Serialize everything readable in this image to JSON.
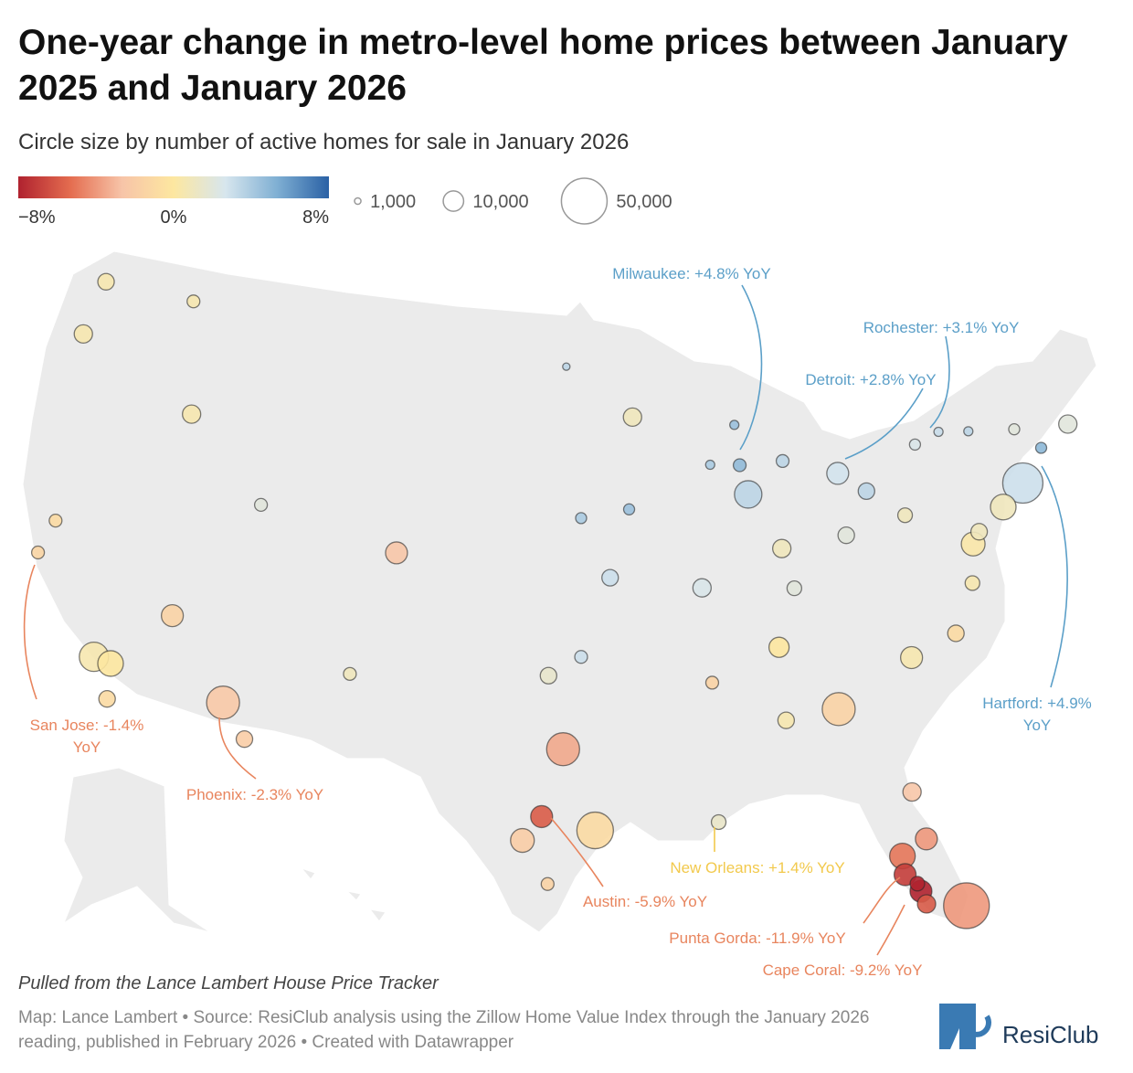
{
  "chart_data": {
    "type": "bubble-map",
    "title": "One-year change in metro-level home prices between January 2025 and January 2026",
    "subtitle": "Circle size by number of active homes for sale in January 2026",
    "color_ticks": [
      {
        "value": -8,
        "label": "−8%"
      },
      {
        "value": 0,
        "label": "0%"
      },
      {
        "value": 8,
        "label": "8%"
      }
    ],
    "colors": [
      "#b0222f",
      "#e46c4f",
      "#f7c4a8",
      "#fde7a0",
      "#d7e6ee",
      "#7fafd3",
      "#2a61a5"
    ],
    "size_ticks": [
      {
        "value": 1000,
        "label": "1,000"
      },
      {
        "value": 10000,
        "label": "10,000"
      },
      {
        "value": 50000,
        "label": "50,000"
      }
    ],
    "points": [
      {
        "label": "Milwaukee: +4.8% YoY",
        "lon": -87.9,
        "lat": 43.0,
        "change": 4.8,
        "inventory": 3900
      },
      {
        "label": "Rochester: +3.1% YoY",
        "lon": -77.6,
        "lat": 43.2,
        "change": 3.1,
        "inventory": 2000
      },
      {
        "label": "Detroit: +2.8% YoY",
        "lon": -83.0,
        "lat": 42.3,
        "change": 2.8,
        "inventory": 11500
      },
      {
        "label": "Hartford: +4.9% YoY",
        "lon": -72.7,
        "lat": 41.8,
        "change": 4.9,
        "inventory": 2900
      },
      {
        "label": "San Jose: -1.4% YoY",
        "lon": -121.9,
        "lat": 37.3,
        "change": -1.4,
        "inventory": 3900
      },
      {
        "label": "Phoenix: -2.3% YoY",
        "lon": -112.1,
        "lat": 33.4,
        "change": -2.3,
        "inventory": 26000
      },
      {
        "label": "Austin: -5.9% YoY",
        "lon": -97.7,
        "lat": 30.3,
        "change": -5.9,
        "inventory": 11500
      },
      {
        "label": "New Orleans: +1.4% YoY",
        "lon": -90.1,
        "lat": 29.95,
        "change": 1.4,
        "inventory": 5100
      },
      {
        "label": "Punta Gorda: -11.9% YoY",
        "lon": -82.05,
        "lat": 26.9,
        "change": -11.9,
        "inventory": 5100
      },
      {
        "label": "Cape Coral: -9.2% YoY",
        "lon": -81.95,
        "lat": 26.6,
        "change": -9.2,
        "inventory": 11500
      },
      {
        "lon": -74.0,
        "lat": 40.7,
        "change": 3.0,
        "inventory": 38700
      },
      {
        "lon": -87.6,
        "lat": 41.9,
        "change": 3.5,
        "inventory": 18000
      },
      {
        "lon": -75.2,
        "lat": 40.0,
        "change": 1.0,
        "inventory": 15700
      },
      {
        "lon": -77.0,
        "lat": 38.9,
        "change": 0.3,
        "inventory": 13500
      },
      {
        "lon": -71.1,
        "lat": 42.4,
        "change": 2.0,
        "inventory": 8000
      },
      {
        "lon": -84.4,
        "lat": 33.7,
        "change": -1.5,
        "inventory": 26000
      },
      {
        "lon": -95.4,
        "lat": 29.8,
        "change": -1.0,
        "inventory": 32000
      },
      {
        "lon": -96.8,
        "lat": 32.8,
        "change": -3.5,
        "inventory": 26000
      },
      {
        "lon": -98.5,
        "lat": 29.4,
        "change": -2.0,
        "inventory": 13500
      },
      {
        "lon": -80.2,
        "lat": 25.8,
        "change": -4.0,
        "inventory": 50000
      },
      {
        "lon": -82.5,
        "lat": 28.0,
        "change": -5.0,
        "inventory": 15700
      },
      {
        "lon": -81.4,
        "lat": 28.5,
        "change": -4.0,
        "inventory": 11500
      },
      {
        "lon": -81.7,
        "lat": 30.3,
        "change": -2.5,
        "inventory": 8000
      },
      {
        "lon": -80.8,
        "lat": 35.2,
        "change": 0.5,
        "inventory": 11500
      },
      {
        "lon": -78.6,
        "lat": 35.8,
        "change": -1.0,
        "inventory": 6500
      },
      {
        "lon": -86.8,
        "lat": 36.2,
        "change": 0.0,
        "inventory": 9700
      },
      {
        "lon": -105.0,
        "lat": 39.7,
        "change": -2.5,
        "inventory": 11500
      },
      {
        "lon": -122.3,
        "lat": 47.6,
        "change": 0.5,
        "inventory": 6500
      },
      {
        "lon": -122.7,
        "lat": 45.5,
        "change": 0.5,
        "inventory": 8000
      },
      {
        "lon": -118.2,
        "lat": 34.1,
        "change": 0.5,
        "inventory": 20500
      },
      {
        "lon": -117.4,
        "lat": 34.0,
        "change": 0.0,
        "inventory": 15700
      },
      {
        "lon": -117.2,
        "lat": 32.7,
        "change": -1.0,
        "inventory": 6500
      },
      {
        "lon": -115.1,
        "lat": 36.2,
        "change": -1.5,
        "inventory": 11500
      },
      {
        "lon": -111.9,
        "lat": 40.8,
        "change": 2.0,
        "inventory": 3900
      },
      {
        "lon": -121.5,
        "lat": 38.6,
        "change": -1.0,
        "inventory": 3900
      },
      {
        "lon": -93.3,
        "lat": 45.0,
        "change": 1.0,
        "inventory": 8000
      },
      {
        "lon": -90.2,
        "lat": 38.6,
        "change": 2.5,
        "inventory": 8000
      },
      {
        "lon": -94.6,
        "lat": 39.1,
        "change": 3.0,
        "inventory": 6500
      },
      {
        "lon": -83.0,
        "lat": 40.0,
        "change": 2.0,
        "inventory": 6500
      },
      {
        "lon": -81.7,
        "lat": 41.5,
        "change": 3.5,
        "inventory": 6500
      },
      {
        "lon": -86.2,
        "lat": 39.8,
        "change": 1.0,
        "inventory": 8000
      },
      {
        "lon": -80.0,
        "lat": 40.4,
        "change": 1.0,
        "inventory": 5100
      },
      {
        "lon": -97.5,
        "lat": 35.5,
        "change": 1.5,
        "inventory": 6500
      },
      {
        "lon": -96.0,
        "lat": 36.2,
        "change": 3.0,
        "inventory": 3900
      },
      {
        "lon": -106.6,
        "lat": 35.1,
        "change": 1.0,
        "inventory": 3900
      },
      {
        "lon": -116.2,
        "lat": 43.6,
        "change": 0.5,
        "inventory": 8000
      },
      {
        "lon": -96.0,
        "lat": 41.3,
        "change": 4.0,
        "inventory": 2900
      },
      {
        "lon": -93.6,
        "lat": 41.6,
        "change": 4.5,
        "inventory": 2900
      },
      {
        "lon": -85.8,
        "lat": 38.3,
        "change": 2.0,
        "inventory": 5100
      },
      {
        "lon": -90.0,
        "lat": 35.1,
        "change": -1.5,
        "inventory": 3900
      },
      {
        "lon": -86.8,
        "lat": 33.5,
        "change": 0.5,
        "inventory": 6500
      },
      {
        "lon": -82.5,
        "lat": 27.3,
        "change": -7.0,
        "inventory": 11500
      },
      {
        "lon": -81.8,
        "lat": 26.1,
        "change": -6.0,
        "inventory": 8000
      },
      {
        "lon": -110.9,
        "lat": 32.2,
        "change": -2.0,
        "inventory": 6500
      },
      {
        "lon": -117.4,
        "lat": 47.7,
        "change": 0.5,
        "inventory": 3900
      },
      {
        "lon": -97.4,
        "lat": 27.8,
        "change": -1.5,
        "inventory": 3900
      },
      {
        "lon": -76.6,
        "lat": 39.3,
        "change": 1.0,
        "inventory": 6500
      },
      {
        "lon": -77.4,
        "lat": 37.5,
        "change": 0.5,
        "inventory": 5100
      },
      {
        "lon": -88.0,
        "lat": 44.5,
        "change": 4.5,
        "inventory": 2000
      },
      {
        "lon": -85.7,
        "lat": 43.0,
        "change": 3.5,
        "inventory": 3900
      },
      {
        "lon": -89.4,
        "lat": 43.1,
        "change": 4.0,
        "inventory": 2000
      },
      {
        "lon": -96.8,
        "lat": 46.9,
        "change": 3.5,
        "inventory": 1300
      },
      {
        "lon": -78.9,
        "lat": 42.9,
        "change": 2.5,
        "inventory": 2900
      },
      {
        "lon": -76.1,
        "lat": 43.0,
        "change": 3.5,
        "inventory": 2000
      },
      {
        "lon": -73.8,
        "lat": 42.7,
        "change": 2.0,
        "inventory": 2900
      }
    ],
    "note": "Pulled from the Lance Lambert House Price Tracker",
    "source": "Map: Lance Lambert • Source: ResiClub analysis using the Zillow Home Value Index through the January 2026 reading, published in February 2026 • Created with Datawrapper",
    "brand": "ResiClub"
  }
}
